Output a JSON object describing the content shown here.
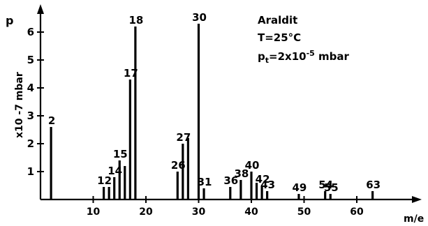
{
  "chart_data": {
    "type": "bar",
    "title": "",
    "xlabel": "m/e",
    "ylabel": "p",
    "y_unit_label": "x10 -7 mbar",
    "xlim": [
      0,
      75
    ],
    "ylim": [
      0,
      6.5
    ],
    "x_ticks": [
      10,
      20,
      30,
      40,
      50,
      60
    ],
    "y_ticks": [
      1,
      2,
      3,
      4,
      5,
      6
    ],
    "grid": false,
    "annotation": {
      "line1": "Araldit",
      "line2": "T=25°C",
      "line3_prefix": "p",
      "line3_sub": "t",
      "line3_mid": "=2x10",
      "line3_sup": "-5",
      "line3_suffix": " mbar"
    },
    "peaks": [
      {
        "x": 2,
        "y": 2.6,
        "label": "2"
      },
      {
        "x": 12,
        "y": 0.45,
        "label": "12"
      },
      {
        "x": 13,
        "y": 0.45,
        "label": ""
      },
      {
        "x": 14,
        "y": 0.8,
        "label": "14"
      },
      {
        "x": 15,
        "y": 1.4,
        "label": "15"
      },
      {
        "x": 16,
        "y": 1.2,
        "label": ""
      },
      {
        "x": 17,
        "y": 4.3,
        "label": "17"
      },
      {
        "x": 18,
        "y": 6.2,
        "label": "18"
      },
      {
        "x": 26,
        "y": 1.0,
        "label": "26"
      },
      {
        "x": 27,
        "y": 2.0,
        "label": "27"
      },
      {
        "x": 28,
        "y": 2.2,
        "label": ""
      },
      {
        "x": 30,
        "y": 6.3,
        "label": "30"
      },
      {
        "x": 31,
        "y": 0.4,
        "label": "31"
      },
      {
        "x": 36,
        "y": 0.45,
        "label": "36"
      },
      {
        "x": 38,
        "y": 0.7,
        "label": "38"
      },
      {
        "x": 40,
        "y": 1.0,
        "label": "40"
      },
      {
        "x": 41,
        "y": 0.6,
        "label": ""
      },
      {
        "x": 42,
        "y": 0.5,
        "label": "42"
      },
      {
        "x": 43,
        "y": 0.3,
        "label": "43"
      },
      {
        "x": 49,
        "y": 0.2,
        "label": "49"
      },
      {
        "x": 54,
        "y": 0.3,
        "label": "54"
      },
      {
        "x": 55,
        "y": 0.2,
        "label": "55"
      },
      {
        "x": 63,
        "y": 0.3,
        "label": "63"
      }
    ]
  }
}
